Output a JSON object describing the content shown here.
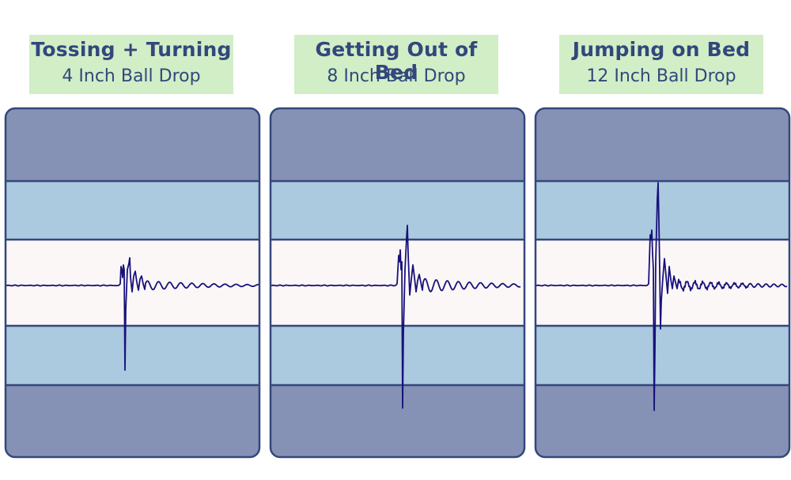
{
  "chart_data": [
    {
      "type": "line",
      "title": "Tossing + Turning",
      "subtitle": "4 Inch Ball Drop",
      "colors": {
        "outer": "#8592b5",
        "middle": "#abc9df",
        "center": "#fcf7f7",
        "border": "#34477c",
        "trace": "#17127a"
      }
    },
    {
      "type": "line",
      "title": "Getting Out of Bed",
      "subtitle": "8 Inch Ball Drop",
      "colors": {
        "outer": "#8592b5",
        "middle": "#abc9df",
        "center": "#fcf7f7",
        "border": "#34477c",
        "trace": "#17127a"
      }
    },
    {
      "type": "line",
      "title": "Jumping on Bed",
      "subtitle": "12 Inch Ball Drop",
      "colors": {
        "outer": "#8592b5",
        "middle": "#abc9df",
        "center": "#fcf7f7",
        "border": "#34477c",
        "trace": "#17127a"
      }
    }
  ]
}
